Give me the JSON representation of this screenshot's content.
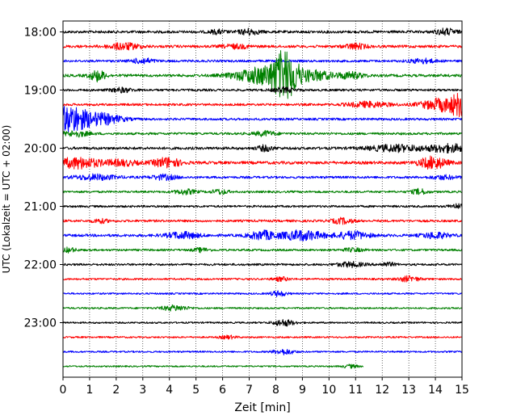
{
  "chart_data": {
    "type": "line",
    "title": "",
    "xlabel": "Zeit  [min]",
    "ylabel": "UTC (Lokalzeit = UTC + 02:00)",
    "xlim": [
      0,
      15
    ],
    "x_ticks": [
      0,
      1,
      2,
      3,
      4,
      5,
      6,
      7,
      8,
      9,
      10,
      11,
      12,
      13,
      14,
      15
    ],
    "y_tick_labels": [
      "18:00",
      "19:00",
      "20:00",
      "21:00",
      "22:00",
      "23:00"
    ],
    "y_tick_rows": [
      0,
      4,
      8,
      12,
      16,
      20
    ],
    "grid": "vertical-dotted",
    "trace_colors": [
      "#000000",
      "#ff0000",
      "#0000ff",
      "#008000"
    ],
    "rows": [
      {
        "time": "18:00",
        "color": "black",
        "amplitude": 0.25,
        "end_min": 15,
        "events": [
          {
            "at": 7.0,
            "amp": 0.5,
            "width": 0.4
          },
          {
            "at": 14.4,
            "amp": 0.55,
            "width": 0.4
          },
          {
            "at": 5.8,
            "amp": 0.35,
            "width": 0.3
          }
        ]
      },
      {
        "time": "18:15",
        "color": "red",
        "amplitude": 0.25,
        "end_min": 15,
        "events": [
          {
            "at": 2.3,
            "amp": 0.6,
            "width": 0.6
          },
          {
            "at": 11.0,
            "amp": 0.5,
            "width": 0.4
          },
          {
            "at": 6.5,
            "amp": 0.35,
            "width": 0.5
          }
        ]
      },
      {
        "time": "18:30",
        "color": "blue",
        "amplitude": 0.22,
        "end_min": 15,
        "events": [
          {
            "at": 3.0,
            "amp": 0.5,
            "width": 0.4
          },
          {
            "at": 13.5,
            "amp": 0.4,
            "width": 0.5
          }
        ]
      },
      {
        "time": "18:45",
        "color": "green",
        "amplitude": 0.25,
        "end_min": 15,
        "events": [
          {
            "at": 1.3,
            "amp": 1.0,
            "width": 0.3
          },
          {
            "at": 7.5,
            "amp": 1.6,
            "width": 1.0
          },
          {
            "at": 8.2,
            "amp": 2.8,
            "width": 0.4
          },
          {
            "at": 8.6,
            "amp": 2.2,
            "width": 0.4
          },
          {
            "at": 9.5,
            "amp": 0.9,
            "width": 0.6
          },
          {
            "at": 10.8,
            "amp": 0.6,
            "width": 0.5
          }
        ]
      },
      {
        "time": "19:00",
        "color": "black",
        "amplitude": 0.22,
        "end_min": 15,
        "events": [
          {
            "at": 2.2,
            "amp": 0.4,
            "width": 0.4
          },
          {
            "at": 8.3,
            "amp": 0.45,
            "width": 0.4
          }
        ]
      },
      {
        "time": "19:15",
        "color": "red",
        "amplitude": 0.22,
        "end_min": 15,
        "events": [
          {
            "at": 11.5,
            "amp": 0.5,
            "width": 0.8
          },
          {
            "at": 14.3,
            "amp": 1.2,
            "width": 0.8
          },
          {
            "at": 14.9,
            "amp": 1.5,
            "width": 0.3
          }
        ]
      },
      {
        "time": "19:30",
        "color": "blue",
        "amplitude": 0.22,
        "end_min": 15,
        "events": [
          {
            "at": 0.2,
            "amp": 2.0,
            "width": 0.5
          },
          {
            "at": 0.9,
            "amp": 1.2,
            "width": 0.8
          },
          {
            "at": 1.8,
            "amp": 0.5,
            "width": 0.6
          }
        ]
      },
      {
        "time": "19:45",
        "color": "green",
        "amplitude": 0.22,
        "end_min": 15,
        "events": [
          {
            "at": 0.5,
            "amp": 0.5,
            "width": 0.5
          },
          {
            "at": 7.6,
            "amp": 0.45,
            "width": 0.4
          }
        ]
      },
      {
        "time": "20:00",
        "color": "black",
        "amplitude": 0.25,
        "end_min": 15,
        "events": [
          {
            "at": 7.6,
            "amp": 0.5,
            "width": 0.3
          },
          {
            "at": 12.5,
            "amp": 0.6,
            "width": 1.0
          },
          {
            "at": 14.5,
            "amp": 0.7,
            "width": 0.8
          }
        ]
      },
      {
        "time": "20:15",
        "color": "red",
        "amplitude": 0.28,
        "end_min": 15,
        "events": [
          {
            "at": 0.6,
            "amp": 1.0,
            "width": 0.8
          },
          {
            "at": 2.2,
            "amp": 0.5,
            "width": 0.6
          },
          {
            "at": 3.9,
            "amp": 0.9,
            "width": 0.5
          },
          {
            "at": 13.9,
            "amp": 1.1,
            "width": 0.5
          }
        ]
      },
      {
        "time": "20:30",
        "color": "blue",
        "amplitude": 0.22,
        "end_min": 15,
        "events": [
          {
            "at": 1.2,
            "amp": 0.5,
            "width": 0.8
          },
          {
            "at": 3.8,
            "amp": 0.45,
            "width": 0.5
          },
          {
            "at": 14.3,
            "amp": 0.35,
            "width": 0.5
          }
        ]
      },
      {
        "time": "20:45",
        "color": "green",
        "amplitude": 0.2,
        "end_min": 15,
        "events": [
          {
            "at": 4.6,
            "amp": 0.45,
            "width": 0.4
          },
          {
            "at": 5.9,
            "amp": 0.45,
            "width": 0.3
          },
          {
            "at": 13.4,
            "amp": 0.5,
            "width": 0.3
          }
        ]
      },
      {
        "time": "21:00",
        "color": "black",
        "amplitude": 0.2,
        "end_min": 15,
        "events": [
          {
            "at": 14.8,
            "amp": 0.4,
            "width": 0.3
          }
        ]
      },
      {
        "time": "21:15",
        "color": "red",
        "amplitude": 0.22,
        "end_min": 15,
        "events": [
          {
            "at": 1.4,
            "amp": 0.35,
            "width": 0.3
          },
          {
            "at": 10.5,
            "amp": 0.5,
            "width": 0.4
          }
        ]
      },
      {
        "time": "21:30",
        "color": "blue",
        "amplitude": 0.25,
        "end_min": 15,
        "events": [
          {
            "at": 4.5,
            "amp": 0.6,
            "width": 0.6
          },
          {
            "at": 7.5,
            "amp": 0.8,
            "width": 0.5
          },
          {
            "at": 9.0,
            "amp": 0.9,
            "width": 0.8
          },
          {
            "at": 10.9,
            "amp": 0.7,
            "width": 0.6
          },
          {
            "at": 14.0,
            "amp": 0.55,
            "width": 0.5
          }
        ]
      },
      {
        "time": "21:45",
        "color": "green",
        "amplitude": 0.2,
        "end_min": 15,
        "events": [
          {
            "at": 0.2,
            "amp": 0.4,
            "width": 0.3
          },
          {
            "at": 5.2,
            "amp": 0.35,
            "width": 0.3
          },
          {
            "at": 10.9,
            "amp": 0.3,
            "width": 0.4
          }
        ]
      },
      {
        "time": "22:00",
        "color": "black",
        "amplitude": 0.2,
        "end_min": 15,
        "events": [
          {
            "at": 10.8,
            "amp": 0.45,
            "width": 0.5
          },
          {
            "at": 12.2,
            "amp": 0.35,
            "width": 0.3
          }
        ]
      },
      {
        "time": "22:15",
        "color": "red",
        "amplitude": 0.18,
        "end_min": 15,
        "events": [
          {
            "at": 8.2,
            "amp": 0.35,
            "width": 0.3
          },
          {
            "at": 13.0,
            "amp": 0.5,
            "width": 0.4
          }
        ]
      },
      {
        "time": "22:30",
        "color": "blue",
        "amplitude": 0.16,
        "end_min": 15,
        "events": [
          {
            "at": 8.1,
            "amp": 0.5,
            "width": 0.3
          }
        ]
      },
      {
        "time": "22:45",
        "color": "green",
        "amplitude": 0.16,
        "end_min": 15,
        "events": [
          {
            "at": 4.2,
            "amp": 0.5,
            "width": 0.5
          }
        ]
      },
      {
        "time": "23:00",
        "color": "black",
        "amplitude": 0.16,
        "end_min": 15,
        "events": [
          {
            "at": 8.3,
            "amp": 0.6,
            "width": 0.4
          }
        ]
      },
      {
        "time": "23:15",
        "color": "red",
        "amplitude": 0.16,
        "end_min": 15,
        "events": [
          {
            "at": 6.2,
            "amp": 0.3,
            "width": 0.3
          }
        ]
      },
      {
        "time": "23:30",
        "color": "blue",
        "amplitude": 0.16,
        "end_min": 15,
        "events": [
          {
            "at": 8.3,
            "amp": 0.5,
            "width": 0.4
          }
        ]
      },
      {
        "time": "23:45",
        "color": "green",
        "amplitude": 0.14,
        "end_min": 11.3,
        "events": [
          {
            "at": 10.8,
            "amp": 0.3,
            "width": 0.3
          }
        ]
      }
    ]
  }
}
